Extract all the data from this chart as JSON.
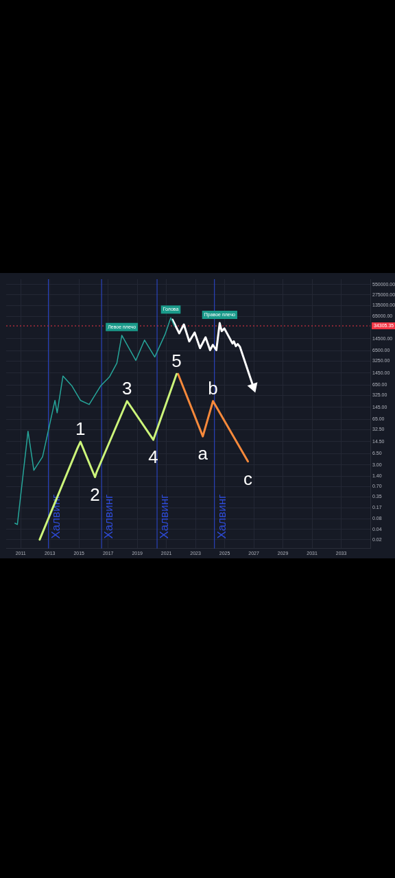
{
  "chart_data": {
    "type": "line",
    "log": "y",
    "grid": true,
    "legend": false,
    "marker": "none",
    "line_style": "solid",
    "xlim": [
      2010,
      2035
    ],
    "xticks": [
      2011,
      2013,
      2015,
      2017,
      2019,
      2021,
      2023,
      2025,
      2027,
      2029,
      2031,
      2033
    ],
    "ylim": [
      0.011,
      790000
    ],
    "yticks": [
      0.02,
      0.04,
      0.08,
      0.17,
      0.35,
      {
        "value": 0.7,
        "label": "0.70"
      },
      {
        "value": 1.4,
        "label": "1.40"
      },
      {
        "value": 3,
        "label": "3.00"
      },
      {
        "value": 6.5,
        "label": "6.50"
      },
      {
        "value": 14.5,
        "label": "14.50"
      },
      {
        "value": 32.5,
        "label": "32.50"
      },
      {
        "value": 65,
        "label": "65.00"
      },
      {
        "value": 145,
        "label": "145.00"
      },
      {
        "value": 325,
        "label": "325.00"
      },
      {
        "value": 650,
        "label": "650.00"
      },
      {
        "value": 1450,
        "label": "1450.00"
      },
      {
        "value": 3250,
        "label": "3250.00"
      },
      {
        "value": 6500,
        "label": "6500.00"
      },
      {
        "value": 14500,
        "label": "14500.00"
      },
      {
        "value": 65000,
        "label": "65000.00"
      },
      {
        "value": 135000,
        "label": "135000.00"
      },
      {
        "value": 275000,
        "label": "275000.00"
      },
      {
        "value": 550000,
        "label": "550000.00"
      }
    ],
    "series": [
      {
        "type": "line",
        "color": "#26a69a",
        "x": [
          2010.6,
          2010.77,
          2011.5,
          2011.9,
          2012.5,
          2013.35,
          2013.5,
          2013.9,
          2014.5,
          2015.1,
          2015.7,
          2016.5,
          2017.1,
          2017.6,
          2017.94,
          2018.9,
          2019.5,
          2020.2,
          2020.9,
          2021.3,
          2021.55
        ],
        "values": [
          0.06,
          0.055,
          29,
          2.1,
          5.2,
          230,
          100,
          1180,
          620,
          230,
          175,
          620,
          1130,
          2800,
          18200,
          3370,
          13200,
          4240,
          19000,
          59000,
          34305.35
        ]
      },
      {
        "type": "line",
        "color": "#ccf57a",
        "x": [
          2012.3,
          2014.9,
          2015.1,
          2016.1,
          2016.2,
          2018.3,
          2020.1,
          2021.7
        ],
        "values": [
          0.02,
          9.4,
          14.2,
          1.33,
          1.82,
          219,
          16.3,
          1356
        ]
      },
      {
        "type": "line",
        "color": "#f7893b",
        "x": [
          2021.8,
          2023.5,
          2024.2,
          2026.6
        ],
        "values": [
          1356,
          20.5,
          219,
          3.8
        ]
      },
      {
        "type": "line",
        "color": "#ffffff",
        "x": [
          2021.42,
          2021.88,
          2022.2,
          2022.57,
          2022.94,
          2023.31,
          2023.69,
          2024.0,
          2024.19,
          2024.43,
          2024.66,
          2024.8,
          2024.98,
          2025.54,
          2025.63,
          2025.77,
          2025.9,
          2026.05,
          2026.97
        ],
        "values": [
          52000,
          20900,
          37800,
          12100,
          21900,
          7700,
          15900,
          6700,
          9600,
          6700,
          41400,
          24000,
          28800,
          10500,
          12100,
          8800,
          10100,
          8400,
          570
        ]
      }
    ],
    "ref_lines": [
      {
        "axis": "x",
        "value": 2012.9,
        "label": "Халвинг",
        "color": "#2e4bd8"
      },
      {
        "axis": "x",
        "value": 2016.55,
        "label": "Халвинг",
        "color": "#2e4bd8"
      },
      {
        "axis": "x",
        "value": 2020.36,
        "label": "Халвинг",
        "color": "#2e4bd8"
      },
      {
        "axis": "x",
        "value": 2024.3,
        "label": "Халвинг",
        "color": "#2e4bd8"
      },
      {
        "axis": "y",
        "value": 34305.35,
        "label": "34305.35",
        "color": "#f23645",
        "line_style": "dotted"
      }
    ],
    "annotations": [
      {
        "text": "Левое плечо",
        "x": 2017.94,
        "y": 18200
      },
      {
        "text": "Голова",
        "x": 2021.3,
        "y": 59000
      },
      {
        "text": "Правое плечо",
        "x": 2024.66,
        "y": 41400
      },
      {
        "text": "1",
        "x": 2015.1,
        "y": 14.2
      },
      {
        "text": "2",
        "x": 2016.1,
        "y": 1.33
      },
      {
        "text": "3",
        "x": 2018.3,
        "y": 219
      },
      {
        "text": "4",
        "x": 2020.1,
        "y": 16.3
      },
      {
        "text": "5",
        "x": 2021.7,
        "y": 1356
      },
      {
        "text": "a",
        "x": 2023.5,
        "y": 20.5
      },
      {
        "text": "b",
        "x": 2024.2,
        "y": 219
      },
      {
        "text": "c",
        "x": 2026.6,
        "y": 3.8
      }
    ]
  }
}
